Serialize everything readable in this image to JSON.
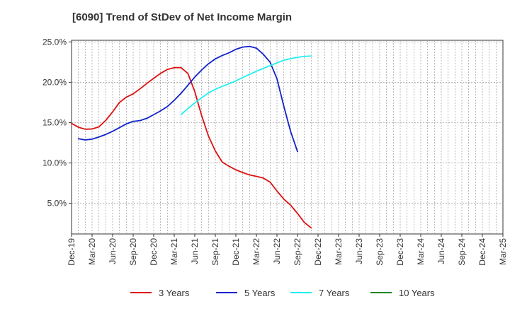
{
  "chart_data": {
    "type": "line",
    "title": "[6090]  Trend of StDev of Net Income Margin",
    "xlabel": "",
    "ylabel": "",
    "ylim": [
      0.012,
      0.252
    ],
    "y_ticks": [
      "5.0%",
      "10.0%",
      "15.0%",
      "20.0%",
      "25.0%"
    ],
    "y_tick_values": [
      0.05,
      0.1,
      0.15,
      0.2,
      0.25
    ],
    "x_ticks": [
      "Dec-19",
      "Mar-20",
      "Jun-20",
      "Sep-20",
      "Dec-20",
      "Mar-21",
      "Jun-21",
      "Sep-21",
      "Dec-21",
      "Mar-22",
      "Jun-22",
      "Sep-22",
      "Dec-22",
      "Mar-23",
      "Jun-23",
      "Sep-23",
      "Dec-23",
      "Mar-24",
      "Jun-24",
      "Sep-24",
      "Dec-24",
      "Mar-25"
    ],
    "grid": true,
    "legend_position": "bottom",
    "series": [
      {
        "name": "3 Years",
        "color": "#dd1111",
        "start_index": 0,
        "values": [
          0.149,
          0.1443,
          0.1418,
          0.1421,
          0.1447,
          0.1528,
          0.1633,
          0.175,
          0.1815,
          0.1856,
          0.1918,
          0.1985,
          0.2049,
          0.211,
          0.2159,
          0.2181,
          0.2181,
          0.2108,
          0.1884,
          0.1587,
          0.1332,
          0.1148,
          0.1011,
          0.0959,
          0.0915,
          0.0881,
          0.0851,
          0.0834,
          0.0813,
          0.0762,
          0.0652,
          0.0552,
          0.0476,
          0.0374,
          0.0263,
          0.0195
        ]
      },
      {
        "name": "5 Years",
        "color": "#1122cc",
        "start_index": 1,
        "values": [
          0.13,
          0.1285,
          0.1295,
          0.1322,
          0.1353,
          0.1393,
          0.1438,
          0.1484,
          0.1515,
          0.1525,
          0.1553,
          0.1598,
          0.1645,
          0.1699,
          0.1777,
          0.1864,
          0.1963,
          0.2064,
          0.2152,
          0.2229,
          0.229,
          0.2331,
          0.2365,
          0.2408,
          0.2436,
          0.2444,
          0.2423,
          0.2347,
          0.2248,
          0.2043,
          0.1703,
          0.1389,
          0.1141
        ]
      },
      {
        "name": "7 Years",
        "color": "#22eeee",
        "start_index": 16,
        "values": [
          0.16,
          0.1674,
          0.1744,
          0.1808,
          0.1868,
          0.1912,
          0.1949,
          0.1981,
          0.2017,
          0.2059,
          0.2098,
          0.2136,
          0.2171,
          0.2206,
          0.224,
          0.2273,
          0.2293,
          0.2309,
          0.2321,
          0.2325
        ]
      },
      {
        "name": "10 Years",
        "color": "#228822",
        "start_index": 0,
        "values": []
      }
    ]
  }
}
